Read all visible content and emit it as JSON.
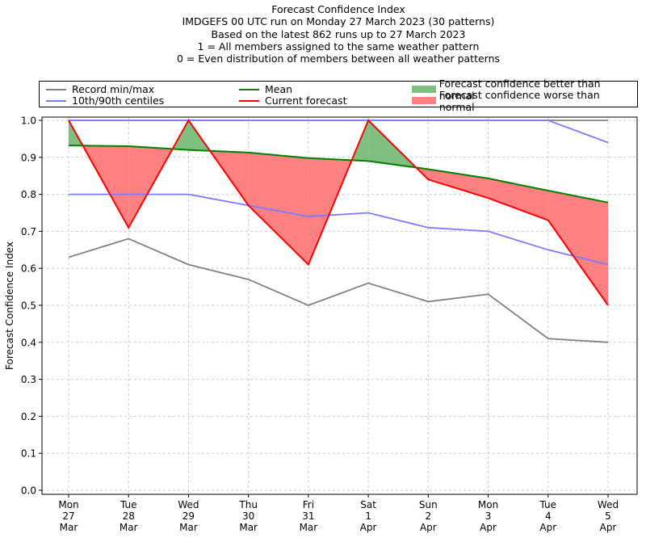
{
  "title_lines": [
    "Forecast Confidence Index",
    "IMDGEFS 00 UTC run on Monday 27 March 2023 (30 patterns)",
    "Based on the latest 862 runs up to 27 March 2023",
    "1 = All members assigned to the same weather pattern",
    "0 = Even distribution of members between all weather patterns"
  ],
  "legend": {
    "record": "Record min/max",
    "centiles": "10th/90th centiles",
    "mean": "Mean",
    "current": "Current forecast",
    "better": "Forecast confidence better than normal",
    "worse": "Forecast confidence worse than normal"
  },
  "colors": {
    "record": "#808080",
    "centiles": "#7b7bff",
    "mean": "#008000",
    "current": "#ff0000",
    "better": "#7fbf7f",
    "worse": "#ff8080"
  },
  "chart_data": {
    "type": "line",
    "title": "Forecast Confidence Index",
    "xlabel": "",
    "ylabel": "Forecast Confidence Index",
    "ylim": [
      0.0,
      1.0
    ],
    "yticks": [
      "0.0",
      "0.1",
      "0.2",
      "0.3",
      "0.4",
      "0.5",
      "0.6",
      "0.7",
      "0.8",
      "0.9",
      "1.0"
    ],
    "grid": true,
    "legend_position": "top",
    "categories": [
      [
        "Mon",
        "27",
        "Mar"
      ],
      [
        "Tue",
        "28",
        "Mar"
      ],
      [
        "Wed",
        "29",
        "Mar"
      ],
      [
        "Thu",
        "30",
        "Mar"
      ],
      [
        "Fri",
        "31",
        "Mar"
      ],
      [
        "Sat",
        "1",
        "Apr"
      ],
      [
        "Sun",
        "2",
        "Apr"
      ],
      [
        "Mon",
        "3",
        "Apr"
      ],
      [
        "Tue",
        "4",
        "Apr"
      ],
      [
        "Wed",
        "5",
        "Apr"
      ]
    ],
    "series": [
      {
        "name": "Record min",
        "key": "record",
        "values": [
          0.63,
          0.68,
          0.61,
          0.57,
          0.5,
          0.56,
          0.51,
          0.53,
          0.41,
          0.4
        ]
      },
      {
        "name": "Record max",
        "key": "record",
        "values": [
          1.0,
          1.0,
          1.0,
          1.0,
          1.0,
          1.0,
          1.0,
          1.0,
          1.0,
          1.0
        ]
      },
      {
        "name": "10th centile",
        "key": "centiles",
        "values": [
          0.8,
          0.8,
          0.8,
          0.77,
          0.74,
          0.75,
          0.71,
          0.7,
          0.65,
          0.61
        ]
      },
      {
        "name": "90th centile",
        "key": "centiles",
        "values": [
          1.0,
          1.0,
          1.0,
          1.0,
          1.0,
          1.0,
          1.0,
          1.0,
          1.0,
          0.94
        ]
      },
      {
        "name": "Mean",
        "key": "mean",
        "values": [
          0.932,
          0.93,
          0.92,
          0.913,
          0.898,
          0.89,
          0.868,
          0.843,
          0.81,
          0.778
        ]
      },
      {
        "name": "Current forecast",
        "key": "current",
        "values": [
          1.0,
          0.71,
          1.0,
          0.77,
          0.61,
          1.0,
          0.84,
          0.79,
          0.73,
          0.5
        ]
      }
    ]
  }
}
